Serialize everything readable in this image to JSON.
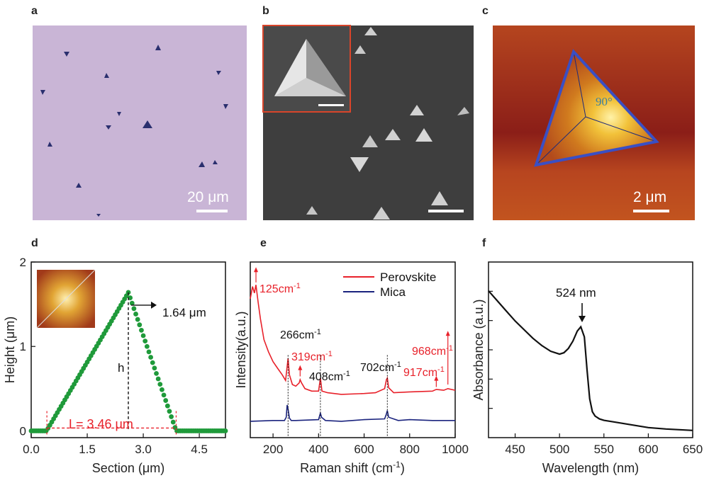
{
  "panels": {
    "a": {
      "label": "a",
      "scalebar": "20 μm",
      "colors": {
        "bg": "#c7b3d6",
        "crystal": "#2a2f6e"
      }
    },
    "b": {
      "label": "b",
      "colors": {
        "bg": "#3d3d3d",
        "inset_border": "#d9452a"
      }
    },
    "c": {
      "label": "c",
      "scalebar": "2 μm",
      "angle_label": "90°",
      "colors": {
        "outline": "#3a4fc4",
        "bg": "#a83a1f",
        "peak": "#ffe066"
      }
    },
    "d": {
      "label": "d",
      "peak_label": "1.64 μm",
      "h_label": "h",
      "L_label": "L= 3.46 μm"
    },
    "e": {
      "label": "e",
      "annotations_red": [
        "125cm",
        "319cm",
        "968cm",
        "917cm"
      ],
      "annotations_black": [
        "266cm",
        "408cm",
        "702cm"
      ],
      "superscript": "-1"
    },
    "f": {
      "label": "f",
      "peak_label": "524 nm"
    }
  },
  "chart_data": [
    {
      "type": "scatter",
      "panel": "d",
      "xlabel": "Section (μm)",
      "ylabel": "Height (μm)",
      "xlim": [
        0,
        5.2
      ],
      "ylim": [
        -0.08,
        2
      ],
      "xticks": [
        "0.0",
        "1.5",
        "3.0",
        "4.5"
      ],
      "xtick_values": [
        0,
        1.5,
        3.0,
        4.5
      ],
      "yticks": [
        "0",
        "1",
        "2"
      ],
      "ytick_values": [
        0,
        1,
        2
      ],
      "series": [
        {
          "x": [
            0.0,
            0.4,
            0.45,
            2.55,
            2.6,
            3.85,
            3.9,
            5.2
          ],
          "y": [
            0.0,
            0.0,
            0.03,
            1.6,
            1.64,
            0.04,
            0.0,
            0.0
          ],
          "color": "#1f9a3a"
        }
      ],
      "annotations": {
        "peak_x": 2.6,
        "peak_y": 1.64,
        "base_left": 0.42,
        "base_right": 3.88
      }
    },
    {
      "type": "line",
      "panel": "e",
      "xlabel": "Raman shift (cm",
      "xlabel_sup": "-1",
      "xlabel_end": ")",
      "ylabel": "Intensity(a.u.)",
      "xlim": [
        100,
        1000
      ],
      "xticks": [
        "200",
        "400",
        "600",
        "800",
        "1000"
      ],
      "xtick_values": [
        200,
        400,
        600,
        800,
        1000
      ],
      "series": [
        {
          "name": "Perovskite",
          "color": "#e8212a",
          "x": [
            100,
            110,
            118,
            125,
            135,
            145,
            160,
            180,
            200,
            220,
            240,
            255,
            262,
            266,
            272,
            285,
            300,
            315,
            319,
            325,
            340,
            370,
            400,
            408,
            415,
            440,
            500,
            600,
            650,
            690,
            698,
            702,
            708,
            730,
            800,
            900,
            917,
            950,
            968,
            1000
          ],
          "y": [
            1.55,
            1.7,
            1.62,
            1.72,
            1.5,
            1.3,
            1.05,
            0.9,
            0.78,
            0.7,
            0.62,
            0.55,
            0.72,
            0.82,
            0.62,
            0.5,
            0.48,
            0.52,
            0.56,
            0.52,
            0.45,
            0.42,
            0.42,
            0.58,
            0.42,
            0.4,
            0.38,
            0.39,
            0.4,
            0.45,
            0.56,
            0.58,
            0.46,
            0.4,
            0.41,
            0.42,
            0.44,
            0.43,
            0.45,
            0.43
          ]
        },
        {
          "name": "Mica",
          "color": "#1a237e",
          "x": [
            100,
            200,
            250,
            258,
            262,
            266,
            272,
            280,
            300,
            400,
            405,
            408,
            413,
            430,
            500,
            600,
            690,
            698,
            702,
            708,
            750,
            800,
            900,
            1000
          ],
          "y": [
            0.05,
            0.06,
            0.06,
            0.1,
            0.25,
            0.2,
            0.09,
            0.06,
            0.06,
            0.07,
            0.12,
            0.15,
            0.1,
            0.06,
            0.05,
            0.07,
            0.08,
            0.14,
            0.18,
            0.1,
            0.06,
            0.07,
            0.06,
            0.06
          ]
        }
      ],
      "legend": "top-right"
    },
    {
      "type": "line",
      "panel": "f",
      "xlabel": "Wavelength (nm)",
      "ylabel": "Absorbance (a.u.)",
      "xlim": [
        420,
        650
      ],
      "xticks": [
        "450",
        "500",
        "550",
        "600",
        "650"
      ],
      "xtick_values": [
        450,
        500,
        550,
        600,
        650
      ],
      "series": [
        {
          "color": "#111111",
          "x": [
            420,
            430,
            440,
            450,
            460,
            470,
            480,
            490,
            500,
            505,
            510,
            515,
            520,
            524,
            528,
            531,
            534,
            537,
            540,
            545,
            550,
            560,
            580,
            600,
            620,
            650
          ],
          "y": [
            1.0,
            0.93,
            0.86,
            0.79,
            0.73,
            0.67,
            0.62,
            0.58,
            0.56,
            0.57,
            0.6,
            0.65,
            0.72,
            0.75,
            0.68,
            0.45,
            0.25,
            0.16,
            0.13,
            0.11,
            0.1,
            0.09,
            0.07,
            0.05,
            0.04,
            0.03
          ]
        }
      ],
      "annotations": {
        "peak_x": 524
      }
    }
  ]
}
